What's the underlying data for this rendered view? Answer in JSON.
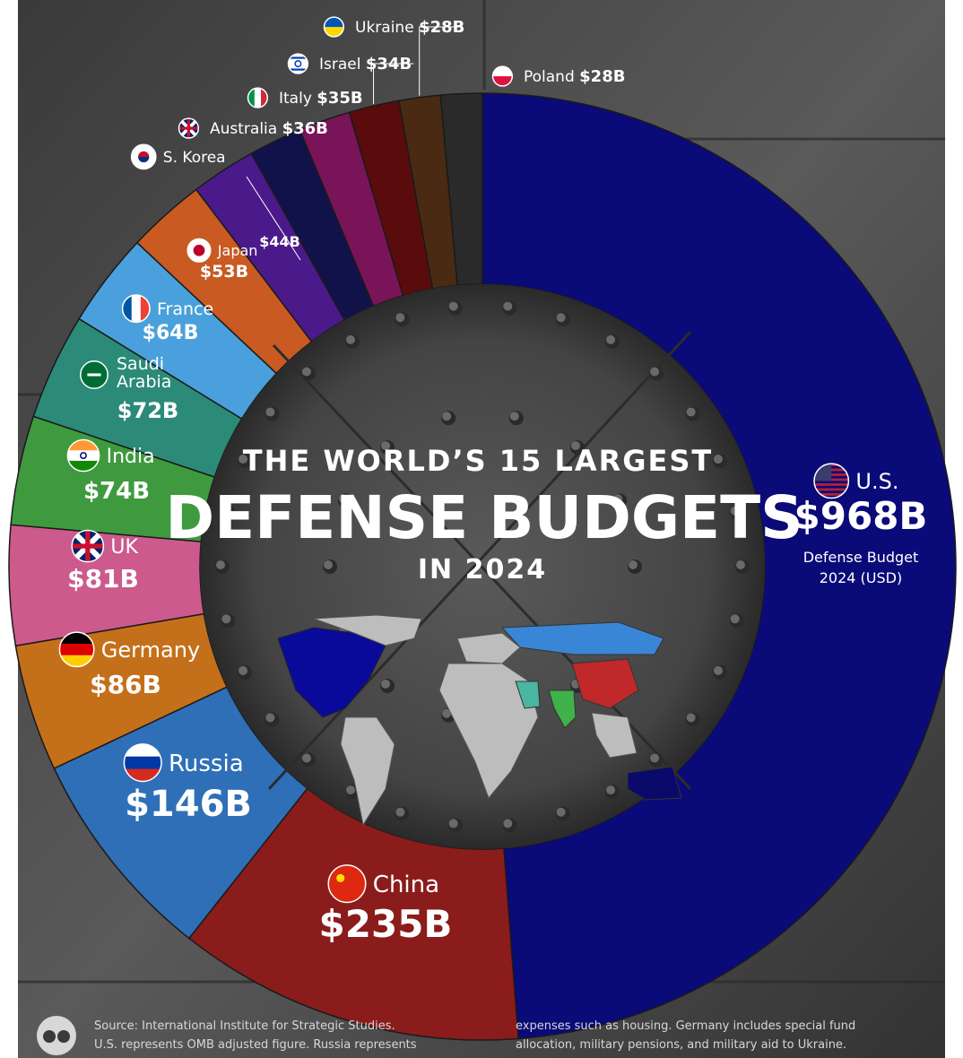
{
  "chart_data": {
    "type": "donut",
    "title_line1": "THE WORLD’S 15 LARGEST",
    "title_line2": "DEFENSE BUDGETS",
    "title_line3": "IN 2024",
    "unit_note_line1": "Defense Budget",
    "unit_note_line2": "2024 (USD)",
    "slices": [
      {
        "name": "U.S.",
        "label": "$968B",
        "value": 968,
        "color": "#0a0a78",
        "flag": "us"
      },
      {
        "name": "China",
        "label": "$235B",
        "value": 235,
        "color": "#8b1c1c",
        "flag": "cn"
      },
      {
        "name": "Russia",
        "label": "$146B",
        "value": 146,
        "color": "#2f6fb8",
        "flag": "ru"
      },
      {
        "name": "Germany",
        "label": "$86B",
        "value": 86,
        "color": "#c4701a",
        "flag": "de"
      },
      {
        "name": "UK",
        "label": "$81B",
        "value": 81,
        "color": "#cc5a8c",
        "flag": "uk"
      },
      {
        "name": "India",
        "label": "$74B",
        "value": 74,
        "color": "#3f9a3f",
        "flag": "in"
      },
      {
        "name": "Saudi Arabia",
        "label": "$72B",
        "value": 72,
        "color": "#2b8a78",
        "flag": "sa"
      },
      {
        "name": "France",
        "label": "$64B",
        "value": 64,
        "color": "#4aa0dc",
        "flag": "fr"
      },
      {
        "name": "Japan",
        "label": "$53B",
        "value": 53,
        "color": "#c85a22",
        "flag": "jp"
      },
      {
        "name": "S. Korea",
        "label": "$44B",
        "value": 44,
        "color": "#4a1a8a",
        "flag": "kr"
      },
      {
        "name": "Australia",
        "label": "$36B",
        "value": 36,
        "color": "#12124a",
        "flag": "au"
      },
      {
        "name": "Italy",
        "label": "$35B",
        "value": 35,
        "color": "#7a1458",
        "flag": "it"
      },
      {
        "name": "Israel",
        "label": "$34B",
        "value": 34,
        "color": "#5a0c0c",
        "flag": "il"
      },
      {
        "name": "Ukraine",
        "label": "$28B",
        "value": 28,
        "color": "#4a2a12",
        "flag": "ua"
      },
      {
        "name": "Poland",
        "label": "$28B",
        "value": 28,
        "color": "#2a2a2a",
        "flag": "pl"
      }
    ]
  },
  "source": {
    "line1": "Source: International Institute for Strategic Studies.",
    "line2": "U.S. represents OMB adjusted figure. Russia represents",
    "line3": "expenses such as housing. Germany includes special fund",
    "line4": "allocation, military pensions, and military aid to Ukraine."
  }
}
